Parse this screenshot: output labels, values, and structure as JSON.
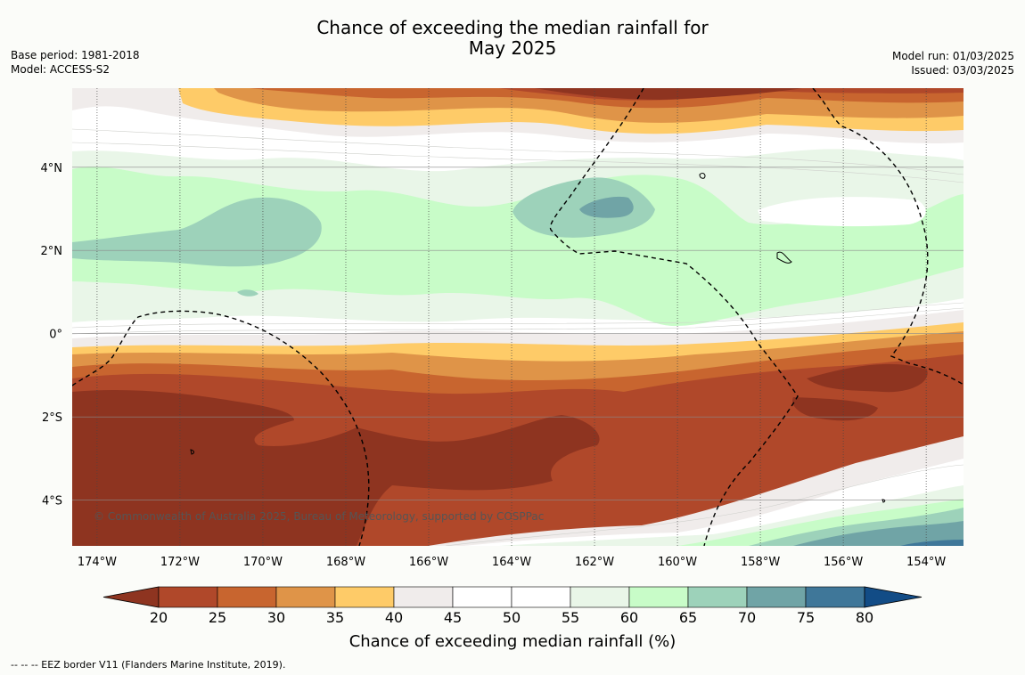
{
  "title": {
    "line1": "Chance of exceeding the median rainfall for",
    "line2": "May 2025"
  },
  "meta": {
    "base_period": "Base period: 1981-2018",
    "model": "Model: ACCESS-S2",
    "model_run": "Model run: 01/03/2025",
    "issued": "Issued: 03/03/2025"
  },
  "map": {
    "lon_range": [
      -174.6,
      -153.1
    ],
    "lat_range": [
      -5.1,
      5.9
    ],
    "x_ticks": [
      "174°W",
      "172°W",
      "170°W",
      "168°W",
      "166°W",
      "164°W",
      "162°W",
      "160°W",
      "158°W",
      "156°W",
      "154°W"
    ],
    "y_ticks": [
      "4°N",
      "2°N",
      "0°",
      "2°S",
      "4°S"
    ],
    "copyright": "© Commonwealth of Australia 2025, Bureau of Meteorology, supported by COSPPac"
  },
  "colorbar": {
    "levels": [
      "20",
      "25",
      "30",
      "35",
      "40",
      "45",
      "50",
      "55",
      "60",
      "65",
      "70",
      "75",
      "80"
    ],
    "colors": [
      "#8e3420",
      "#b0482a",
      "#c8652f",
      "#df9448",
      "#fecb68",
      "#f0eceb",
      "#ffffff",
      "#ffffff",
      "#e9f6e8",
      "#c8fcc8",
      "#9dd2ba",
      "#70a4a6",
      "#3f7799",
      "#124c86"
    ],
    "label": "Chance of exceeding median rainfall (%)"
  },
  "footnote": "--  --  -- EEZ border V11 (Flanders Marine Institute, 2019)."
}
